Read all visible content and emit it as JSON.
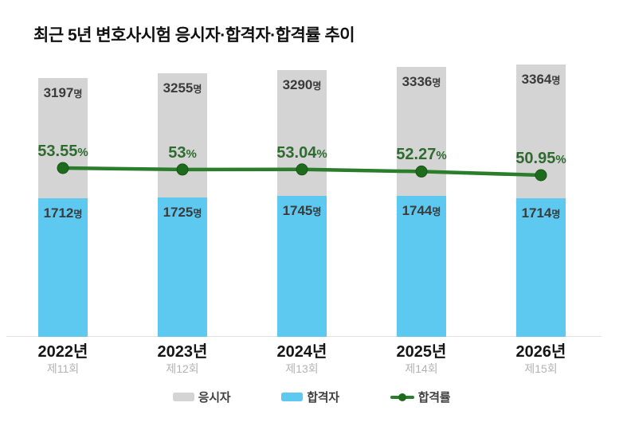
{
  "title": "최근 5년 변호사시험 응시자·합격자·합격률 추이",
  "colors": {
    "applicants_bar": "#d4d4d4",
    "passers_bar": "#5dc8f0",
    "rate_line": "#2a7d2a",
    "rate_dot": "#1e6b1e",
    "rate_dot_edge": "#155415",
    "rate_label": "#2f6b2f",
    "value_label": "#3b3b3b",
    "axis_line": "#e0e0e0"
  },
  "legend": [
    {
      "label": "응시자",
      "type": "bar",
      "color": "#d4d4d4"
    },
    {
      "label": "합격자",
      "type": "bar",
      "color": "#5dc8f0"
    },
    {
      "label": "합격률",
      "type": "line",
      "color": "#2a7d2a"
    }
  ],
  "chart_data": {
    "type": "bar",
    "subtype": "grouped-bars-with-line-overlay",
    "title": "최근 5년 변호사시험 응시자·합격자·합격률 추이",
    "categories": [
      "2022년",
      "2023년",
      "2024년",
      "2025년",
      "2026년"
    ],
    "category_sub": [
      "제11회",
      "제12회",
      "제13회",
      "제14회",
      "제15회"
    ],
    "value_suffix": "명",
    "rate_suffix": "%",
    "series": [
      {
        "name": "응시자",
        "type": "bar",
        "color": "#d4d4d4",
        "values": [
          3197,
          3255,
          3290,
          3336,
          3364
        ]
      },
      {
        "name": "합격자",
        "type": "bar",
        "color": "#5dc8f0",
        "values": [
          1712,
          1725,
          1745,
          1744,
          1714
        ]
      },
      {
        "name": "합격률",
        "type": "line",
        "color": "#2a7d2a",
        "values": [
          53.55,
          53,
          53.04,
          52.27,
          50.95
        ]
      }
    ],
    "grid": false,
    "legend_position": "bottom",
    "value_labels_shown": true
  }
}
